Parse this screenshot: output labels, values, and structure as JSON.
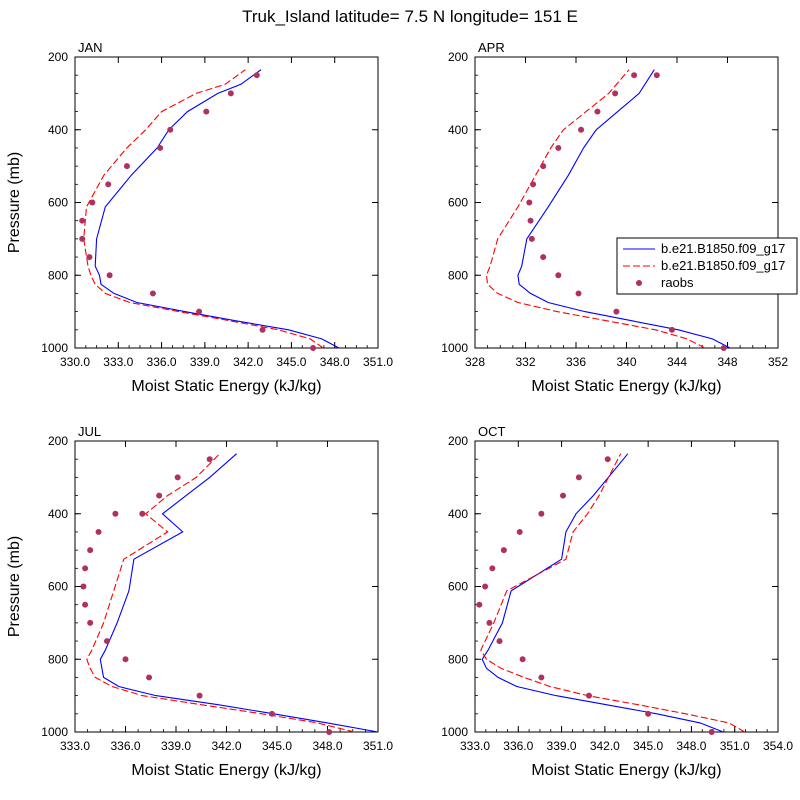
{
  "figure_title": "Truk_Island  latitude= 7.5 N longitude= 151 E",
  "colors": {
    "model1": "#0000ff",
    "model2": "#ff0000",
    "raobs": "#b03060",
    "axes": "#000000"
  },
  "legend": {
    "entries": [
      {
        "label": "b.e21.B1850.f09_g17",
        "style": "solid",
        "color": "#0000ff"
      },
      {
        "label": "b.e21.B1850.f09_g17",
        "style": "dashed",
        "color": "#ff0000"
      },
      {
        "label": "raobs",
        "style": "marker",
        "color": "#b03060"
      }
    ]
  },
  "chart_data": [
    {
      "type": "line",
      "title": "JAN",
      "xlabel": "Moist Static Energy (kJ/kg)",
      "ylabel": "Pressure (mb)",
      "xlim": [
        330,
        351
      ],
      "xticks": [
        330,
        333,
        336,
        339,
        342,
        345,
        348,
        351
      ],
      "xtick_labels": [
        "330.0",
        "333.0",
        "336.0",
        "339.0",
        "342.0",
        "345.0",
        "348.0",
        "351.0"
      ],
      "ylim": [
        1000,
        200
      ],
      "yticks": [
        200,
        400,
        600,
        800,
        1000
      ],
      "ytick_labels": [
        "200",
        "400",
        "600",
        "800",
        "1000"
      ],
      "legend": false,
      "series": [
        {
          "kind": "solid",
          "x": [
            348.3,
            347.1,
            344.8,
            341.1,
            337.6,
            334.3,
            332.7,
            331.8,
            331.7,
            331.4,
            331.5,
            332.1,
            333.9,
            335.7,
            336.5,
            337.8,
            339.9,
            341.5,
            342.9
          ],
          "y": [
            1000,
            975,
            950,
            925,
            900,
            875,
            850,
            825,
            800,
            775,
            700,
            612,
            525,
            450,
            400,
            350,
            300,
            275,
            235
          ]
        },
        {
          "kind": "dashed",
          "x": [
            347.2,
            346.3,
            344.1,
            340.7,
            337.2,
            333.8,
            332.1,
            331.4,
            331.1,
            330.9,
            330.6,
            330.8,
            332.0,
            333.6,
            334.9,
            336.0,
            338.4,
            340.4,
            341.8
          ],
          "y": [
            1000,
            975,
            950,
            925,
            900,
            875,
            850,
            825,
            800,
            775,
            700,
            612,
            525,
            450,
            400,
            350,
            300,
            275,
            235
          ]
        },
        {
          "kind": "marker",
          "x": [
            346.5,
            343.0,
            338.6,
            335.4,
            332.4,
            331.0,
            330.5,
            330.5,
            331.2,
            332.3,
            333.6,
            335.9,
            336.6,
            339.1,
            340.8,
            342.6
          ],
          "y": [
            1000,
            950,
            900,
            850,
            800,
            750,
            700,
            650,
            600,
            550,
            500,
            450,
            400,
            350,
            300,
            250
          ]
        }
      ]
    },
    {
      "type": "line",
      "title": "APR",
      "xlabel": "Moist Static Energy (kJ/kg)",
      "ylabel": "",
      "xlim": [
        328,
        352
      ],
      "xticks": [
        328,
        332,
        336,
        340,
        344,
        348,
        352
      ],
      "xtick_labels": [
        "328",
        "332",
        "336",
        "340",
        "344",
        "348",
        "352"
      ],
      "ylim": [
        1000,
        200
      ],
      "yticks": [
        200,
        400,
        600,
        800,
        1000
      ],
      "ytick_labels": [
        "200",
        "400",
        "600",
        "800",
        "1000"
      ],
      "legend": true,
      "series": [
        {
          "kind": "solid",
          "x": [
            348.2,
            346.8,
            344.1,
            340.4,
            336.7,
            333.8,
            332.4,
            331.5,
            331.4,
            331.7,
            332.1,
            333.8,
            335.4,
            336.6,
            337.6,
            339.3,
            341.0,
            342.2
          ],
          "y": [
            1000,
            975,
            950,
            925,
            900,
            875,
            850,
            825,
            800,
            775,
            700,
            612,
            525,
            450,
            400,
            350,
            300,
            235
          ]
        },
        {
          "kind": "dashed",
          "x": [
            346.2,
            344.8,
            342.3,
            338.4,
            334.5,
            331.4,
            329.8,
            329.0,
            328.9,
            329.2,
            329.8,
            331.4,
            332.8,
            334.0,
            335.0,
            336.8,
            338.6,
            340.2
          ],
          "y": [
            1000,
            975,
            950,
            925,
            900,
            875,
            850,
            825,
            800,
            775,
            700,
            612,
            525,
            450,
            400,
            350,
            300,
            235
          ]
        },
        {
          "kind": "marker",
          "x": [
            347.7,
            343.6,
            339.2,
            336.2,
            334.6,
            333.4,
            332.5,
            332.4,
            332.3,
            332.6,
            333.4,
            334.6,
            336.4,
            337.7,
            339.1,
            340.6,
            342.4
          ],
          "y": [
            1000,
            950,
            900,
            850,
            800,
            750,
            700,
            650,
            600,
            550,
            500,
            450,
            400,
            350,
            300,
            250,
            250
          ]
        }
      ]
    },
    {
      "type": "line",
      "title": "JUL",
      "xlabel": "Moist Static Energy (kJ/kg)",
      "ylabel": "Pressure (mb)",
      "xlim": [
        333,
        351
      ],
      "xticks": [
        333,
        336,
        339,
        342,
        345,
        348,
        351
      ],
      "xtick_labels": [
        "333.0",
        "336.0",
        "339.0",
        "342.0",
        "345.0",
        "348.0",
        "351.0"
      ],
      "ylim": [
        1000,
        200
      ],
      "yticks": [
        200,
        400,
        600,
        800,
        1000
      ],
      "ytick_labels": [
        "200",
        "400",
        "600",
        "800",
        "1000"
      ],
      "legend": false,
      "series": [
        {
          "kind": "solid",
          "x": [
            351.0,
            348.0,
            344.8,
            341.5,
            337.8,
            335.6,
            334.7,
            334.6,
            334.5,
            334.8,
            335.5,
            336.2,
            336.5,
            339.4,
            338.2,
            339.6,
            341.0,
            342.6
          ],
          "y": [
            1000,
            975,
            950,
            925,
            900,
            875,
            850,
            825,
            800,
            775,
            700,
            612,
            525,
            450,
            400,
            350,
            300,
            235
          ]
        },
        {
          "kind": "dashed",
          "x": [
            349.6,
            347.4,
            344.1,
            340.5,
            337.0,
            335.2,
            334.2,
            333.9,
            333.7,
            334.0,
            334.7,
            335.3,
            335.9,
            338.5,
            337.2,
            338.5,
            340.2,
            341.6
          ],
          "y": [
            1000,
            975,
            950,
            925,
            900,
            875,
            850,
            825,
            800,
            775,
            700,
            612,
            525,
            450,
            400,
            350,
            300,
            235
          ]
        },
        {
          "kind": "marker",
          "x": [
            348.1,
            344.7,
            340.4,
            337.4,
            336.0,
            334.9,
            333.9,
            333.6,
            333.5,
            333.6,
            333.9,
            334.4,
            335.4,
            337.0,
            338.0,
            339.1,
            341.0
          ],
          "y": [
            1000,
            950,
            900,
            850,
            800,
            750,
            700,
            650,
            600,
            550,
            500,
            450,
            400,
            400,
            350,
            300,
            250
          ]
        }
      ]
    },
    {
      "type": "line",
      "title": "OCT",
      "xlabel": "Moist Static Energy (kJ/kg)",
      "ylabel": "",
      "xlim": [
        333,
        354
      ],
      "xticks": [
        333,
        336,
        339,
        342,
        345,
        348,
        351,
        354
      ],
      "xtick_labels": [
        "333.0",
        "336.0",
        "339.0",
        "342.0",
        "345.0",
        "348.0",
        "351.0",
        "354.0"
      ],
      "ylim": [
        1000,
        200
      ],
      "yticks": [
        200,
        400,
        600,
        800,
        1000
      ],
      "ytick_labels": [
        "200",
        "400",
        "600",
        "800",
        "1000"
      ],
      "legend": false,
      "series": [
        {
          "kind": "solid",
          "x": [
            350.2,
            348.6,
            345.6,
            342.1,
            338.6,
            335.9,
            334.6,
            333.8,
            333.5,
            333.9,
            334.9,
            335.5,
            339.0,
            339.3,
            340.0,
            341.2,
            343.6
          ],
          "y": [
            1000,
            975,
            950,
            925,
            900,
            875,
            850,
            825,
            800,
            775,
            700,
            612,
            525,
            450,
            400,
            350,
            235
          ]
        },
        {
          "kind": "dashed",
          "x": [
            351.7,
            350.6,
            347.6,
            344.3,
            340.8,
            338.2,
            336.4,
            334.8,
            333.8,
            333.4,
            334.3,
            335.2,
            339.3,
            339.8,
            340.8,
            341.6,
            343.1
          ],
          "y": [
            1000,
            975,
            950,
            925,
            900,
            875,
            850,
            825,
            800,
            775,
            700,
            612,
            525,
            450,
            400,
            350,
            235
          ]
        },
        {
          "kind": "marker",
          "x": [
            349.4,
            345.0,
            340.9,
            337.6,
            336.3,
            334.7,
            334.0,
            333.3,
            333.7,
            334.2,
            335.0,
            336.1,
            337.6,
            339.1,
            340.2,
            342.2
          ],
          "y": [
            1000,
            950,
            900,
            850,
            800,
            750,
            700,
            650,
            600,
            550,
            500,
            450,
            400,
            350,
            300,
            250
          ]
        }
      ]
    }
  ]
}
